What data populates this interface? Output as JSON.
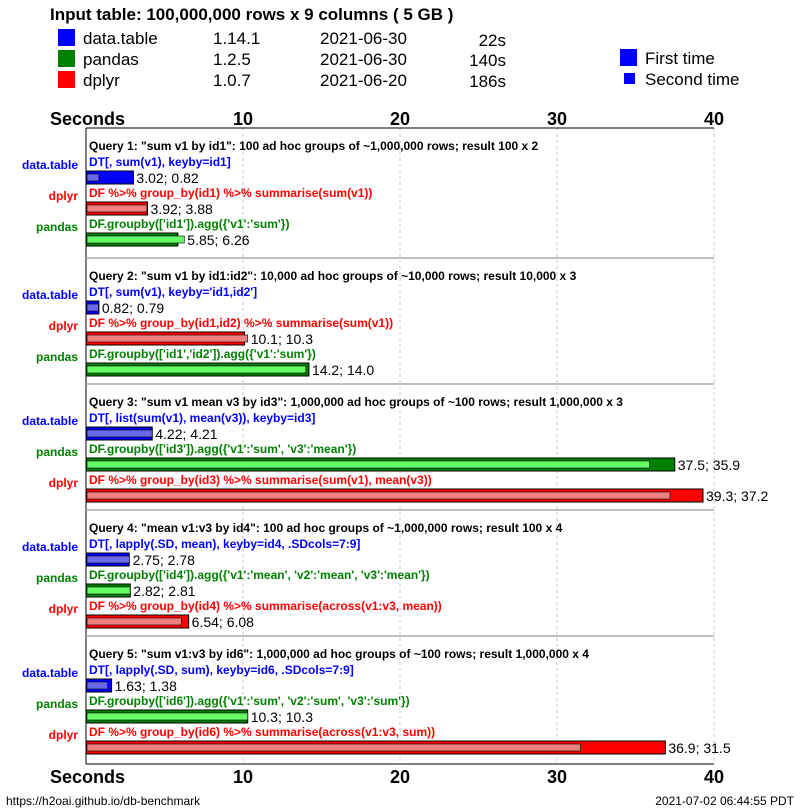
{
  "header": {
    "title": "Input table: 100,000,000 rows x 9 columns ( 5 GB )",
    "solutions": [
      {
        "name": "data.table",
        "version": "1.14.1",
        "date": "2021-06-30",
        "time": "22s",
        "color": "#0000ff"
      },
      {
        "name": "pandas",
        "version": "1.2.5",
        "date": "2021-06-30",
        "time": "140s",
        "color": "#008000"
      },
      {
        "name": "dplyr",
        "version": "1.0.7",
        "date": "2021-06-20",
        "time": "186s",
        "color": "#ff0000"
      }
    ],
    "legend": [
      {
        "label": "First time",
        "color": "#0000ff"
      },
      {
        "label": "Second time",
        "color": "#0000ff"
      }
    ]
  },
  "footer": {
    "url": "https://h2oai.github.io/db-benchmark",
    "timestamp": "2021-07-02 06:44:55 PDT"
  },
  "chart_data": {
    "type": "bar",
    "orientation": "horizontal",
    "xlabel": "Seconds",
    "xlim": [
      0,
      40
    ],
    "xticks": [
      "10",
      "20",
      "30",
      "40"
    ],
    "grid": "vertical dashed",
    "colors": {
      "data.table": {
        "first": "#0000ff",
        "second": "#6a6ae8",
        "text": "#0000ff"
      },
      "pandas": {
        "first": "#008000",
        "second": "#66ff66",
        "text": "#008000"
      },
      "dplyr": {
        "first": "#ff0000",
        "second": "#f08080",
        "text": "#ff0000"
      }
    },
    "queries": [
      {
        "title": "Query 1: \"sum v1 by id1\": 100 ad hoc groups of ~1,000,000 rows;  result 100 x 2",
        "bars": [
          {
            "solution": "data.table",
            "code": "DT[, sum(v1), keyby=id1]",
            "first": 3.02,
            "second": 0.82,
            "label": "3.02; 0.82"
          },
          {
            "solution": "dplyr",
            "code": "DF %>% group_by(id1) %>% summarise(sum(v1))",
            "first": 3.92,
            "second": 3.88,
            "label": "3.92; 3.88"
          },
          {
            "solution": "pandas",
            "code": "DF.groupby(['id1']).agg({'v1':'sum'})",
            "first": 5.85,
            "second": 6.26,
            "label": "5.85; 6.26"
          }
        ]
      },
      {
        "title": "Query 2: \"sum v1 by id1:id2\": 10,000 ad hoc groups of ~10,000 rows;  result 10,000 x 3",
        "bars": [
          {
            "solution": "data.table",
            "code": "DT[, sum(v1), keyby='id1,id2']",
            "first": 0.82,
            "second": 0.79,
            "label": "0.82; 0.79"
          },
          {
            "solution": "dplyr",
            "code": "DF %>% group_by(id1,id2) %>% summarise(sum(v1))",
            "first": 10.1,
            "second": 10.3,
            "label": "10.1; 10.3"
          },
          {
            "solution": "pandas",
            "code": "DF.groupby(['id1','id2']).agg({'v1':'sum'})",
            "first": 14.2,
            "second": 14.0,
            "label": "14.2; 14.0"
          }
        ]
      },
      {
        "title": "Query 3: \"sum v1 mean v3 by id3\": 1,000,000 ad hoc groups of ~100 rows;  result 1,000,000 x 3",
        "bars": [
          {
            "solution": "data.table",
            "code": "DT[, list(sum(v1), mean(v3)), keyby=id3]",
            "first": 4.22,
            "second": 4.21,
            "label": "4.22; 4.21"
          },
          {
            "solution": "pandas",
            "code": "DF.groupby(['id3']).agg({'v1':'sum', 'v3':'mean'})",
            "first": 37.5,
            "second": 35.9,
            "label": "37.5; 35.9"
          },
          {
            "solution": "dplyr",
            "code": "DF %>% group_by(id3) %>% summarise(sum(v1), mean(v3))",
            "first": 39.3,
            "second": 37.2,
            "label": "39.3; 37.2"
          }
        ]
      },
      {
        "title": "Query 4: \"mean v1:v3 by id4\": 100 ad hoc groups of ~1,000,000 rows;  result 100 x 4",
        "bars": [
          {
            "solution": "data.table",
            "code": "DT[, lapply(.SD, mean), keyby=id4, .SDcols=7:9]",
            "first": 2.75,
            "second": 2.78,
            "label": "2.75; 2.78"
          },
          {
            "solution": "pandas",
            "code": "DF.groupby(['id4']).agg({'v1':'mean', 'v2':'mean', 'v3':'mean'})",
            "first": 2.82,
            "second": 2.81,
            "label": "2.82; 2.81"
          },
          {
            "solution": "dplyr",
            "code": "DF %>% group_by(id4) %>% summarise(across(v1:v3, mean))",
            "first": 6.54,
            "second": 6.08,
            "label": "6.54; 6.08"
          }
        ]
      },
      {
        "title": "Query 5: \"sum v1:v3 by id6\": 1,000,000 ad hoc groups of ~100 rows;  result 1,000,000 x 4",
        "bars": [
          {
            "solution": "data.table",
            "code": "DT[, lapply(.SD, sum), keyby=id6, .SDcols=7:9]",
            "first": 1.63,
            "second": 1.38,
            "label": "1.63; 1.38"
          },
          {
            "solution": "pandas",
            "code": "DF.groupby(['id6']).agg({'v1':'sum', 'v2':'sum', 'v3':'sum'})",
            "first": 10.3,
            "second": 10.3,
            "label": "10.3; 10.3"
          },
          {
            "solution": "dplyr",
            "code": "DF %>% group_by(id6) %>% summarise(across(v1:v3, sum))",
            "first": 36.9,
            "second": 31.5,
            "label": "36.9; 31.5"
          }
        ]
      }
    ]
  }
}
